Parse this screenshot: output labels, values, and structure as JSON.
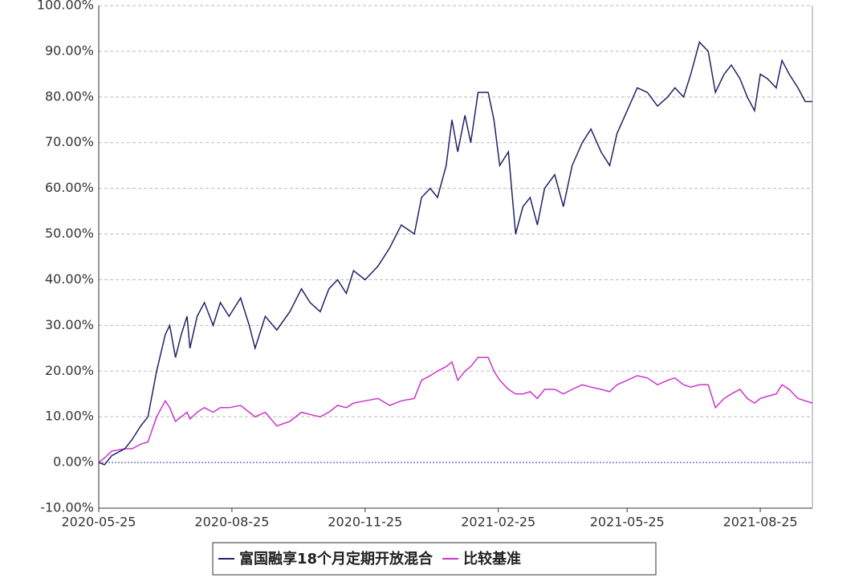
{
  "chart_data": {
    "type": "line",
    "x": [
      "2020-05-25",
      "2020-05-29",
      "2020-06-03",
      "2020-06-12",
      "2020-06-17",
      "2020-06-23",
      "2020-06-28",
      "2020-07-04",
      "2020-07-10",
      "2020-07-13",
      "2020-07-17",
      "2020-07-21",
      "2020-07-25",
      "2020-07-27",
      "2020-08-01",
      "2020-08-06",
      "2020-08-12",
      "2020-08-17",
      "2020-08-23",
      "2020-08-31",
      "2020-09-06",
      "2020-09-10",
      "2020-09-17",
      "2020-09-25",
      "2020-10-04",
      "2020-10-12",
      "2020-10-18",
      "2020-10-25",
      "2020-10-31",
      "2020-11-06",
      "2020-11-12",
      "2020-11-17",
      "2020-11-25",
      "2020-12-04",
      "2020-12-12",
      "2020-12-20",
      "2020-12-29",
      "2021-01-03",
      "2021-01-09",
      "2021-01-14",
      "2021-01-20",
      "2021-01-24",
      "2021-01-28",
      "2021-02-02",
      "2021-02-06",
      "2021-02-11",
      "2021-02-18",
      "2021-02-22",
      "2021-02-26",
      "2021-03-04",
      "2021-03-09",
      "2021-03-14",
      "2021-03-19",
      "2021-03-24",
      "2021-03-29",
      "2021-04-05",
      "2021-04-11",
      "2021-04-17",
      "2021-04-24",
      "2021-04-30",
      "2021-05-07",
      "2021-05-13",
      "2021-05-18",
      "2021-05-25",
      "2021-06-01",
      "2021-06-08",
      "2021-06-15",
      "2021-06-22",
      "2021-06-27",
      "2021-07-03",
      "2021-07-08",
      "2021-07-14",
      "2021-07-20",
      "2021-07-25",
      "2021-07-31",
      "2021-08-05",
      "2021-08-11",
      "2021-08-16",
      "2021-08-21",
      "2021-08-25",
      "2021-08-30",
      "2021-09-05",
      "2021-09-09",
      "2021-09-14",
      "2021-09-20",
      "2021-09-25",
      "2021-09-30"
    ],
    "series": [
      {
        "name": "富国融享18个月定期开放混合",
        "color": "#1f2466",
        "values": [
          0,
          -0.5,
          1.5,
          3,
          5,
          8,
          10,
          20,
          28,
          30,
          23,
          28,
          32,
          25,
          32,
          35,
          30,
          35,
          32,
          36,
          30,
          25,
          32,
          29,
          33,
          38,
          35,
          33,
          38,
          40,
          37,
          42,
          40,
          43,
          47,
          52,
          50,
          58,
          60,
          58,
          65,
          75,
          68,
          76,
          70,
          81,
          81,
          75,
          65,
          68,
          50,
          56,
          58,
          52,
          60,
          63,
          56,
          65,
          70,
          73,
          68,
          65,
          72,
          77,
          82,
          81,
          78,
          80,
          82,
          80,
          85,
          92,
          90,
          81,
          85,
          87,
          84,
          80,
          77,
          85,
          84,
          82,
          88,
          85,
          82,
          79,
          79
        ]
      },
      {
        "name": "比较基准",
        "color": "#cc33cc",
        "values": [
          0,
          1,
          2.5,
          3,
          3,
          4,
          4.5,
          10,
          13.5,
          12,
          9,
          10,
          11,
          9.5,
          11,
          12,
          11,
          12,
          12,
          12.5,
          11,
          10,
          11,
          8,
          9,
          11,
          10.5,
          10,
          11,
          12.5,
          12,
          13,
          13.5,
          14,
          12.5,
          13.5,
          14,
          18,
          19,
          20,
          21,
          22,
          18,
          20,
          21,
          23,
          23,
          20,
          18,
          16,
          15,
          15,
          15.5,
          14,
          16,
          16,
          15,
          16,
          17,
          16.5,
          16,
          15.5,
          17,
          18,
          19,
          18.5,
          17,
          18,
          18.5,
          17,
          16.5,
          17,
          17,
          12,
          14,
          15,
          16,
          14,
          13,
          14,
          14.5,
          15,
          17,
          16,
          14,
          13.5,
          13
        ]
      }
    ],
    "xlim": [
      "2020-05-25",
      "2021-09-30"
    ],
    "xticks": [
      "2020-05-25",
      "2020-08-25",
      "2020-11-25",
      "2021-02-25",
      "2021-05-25",
      "2021-08-25"
    ],
    "ylim": [
      -10,
      100
    ],
    "yticks": [
      {
        "value": -10,
        "label": "-10.00%"
      },
      {
        "value": 0,
        "label": "0.00%"
      },
      {
        "value": 10,
        "label": "10.00%"
      },
      {
        "value": 20,
        "label": "20.00%"
      },
      {
        "value": 30,
        "label": "30.00%"
      },
      {
        "value": 40,
        "label": "40.00%"
      },
      {
        "value": 50,
        "label": "50.00%"
      },
      {
        "value": 60,
        "label": "60.00%"
      },
      {
        "value": 70,
        "label": "70.00%"
      },
      {
        "value": 80,
        "label": "80.00%"
      },
      {
        "value": 90,
        "label": "90.00%"
      },
      {
        "value": 100,
        "label": "100.00%"
      }
    ],
    "grid": true,
    "legend": "bottom"
  }
}
